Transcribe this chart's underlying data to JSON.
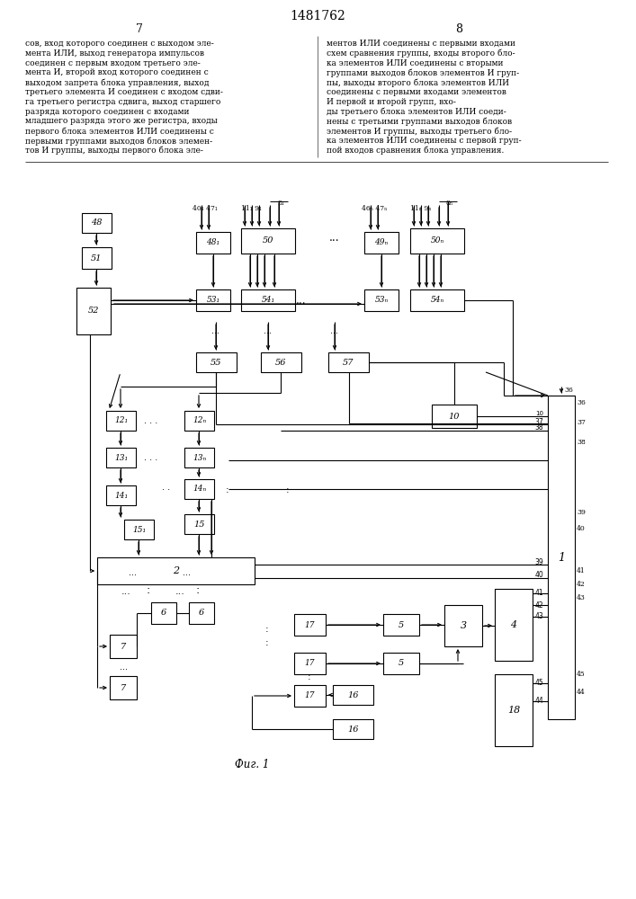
{
  "title": "1481762",
  "page_left": "7",
  "page_right": "8",
  "fig_label": "Фиг. 1",
  "text_left": "сов, вход которого соединен с выходом эле-мента ИЛИ, выход генератора импульсов соединен с первым входом третьего эле-мента И, второй вход которого соединен с выходом запрета блока управления, выход третьего элемента И соединен с входом сдвига третьего регистра сдвига, выход старшего разряда которого соединен с входами младшего разряда этого же регистра, входы первого блока элементов ИЛИ соединены с первыми группами выходов блоков элементов И группы, выходы первого блока эле-",
  "text_right": "ментов ИЛИ соединены с первыми входами схем сравнения группы, входы второго бло-ка элементов ИЛИ соединены с вторыми группами выходов блоков элементов И груп-пы, выходы второго блока элементов ИЛИ соединены с первыми входами элемен-тов И первой и второй групп, вхо-ды третьего блока элементов ИЛИ соеди-нены с третьими группами выходов блоков элементов И группы, выходы третьего бло-ка элементов ИЛИ соединены с первой груп-пой входов сравнения блока управления.",
  "background": "#ffffff",
  "line_color": "#000000",
  "text_color": "#000000"
}
